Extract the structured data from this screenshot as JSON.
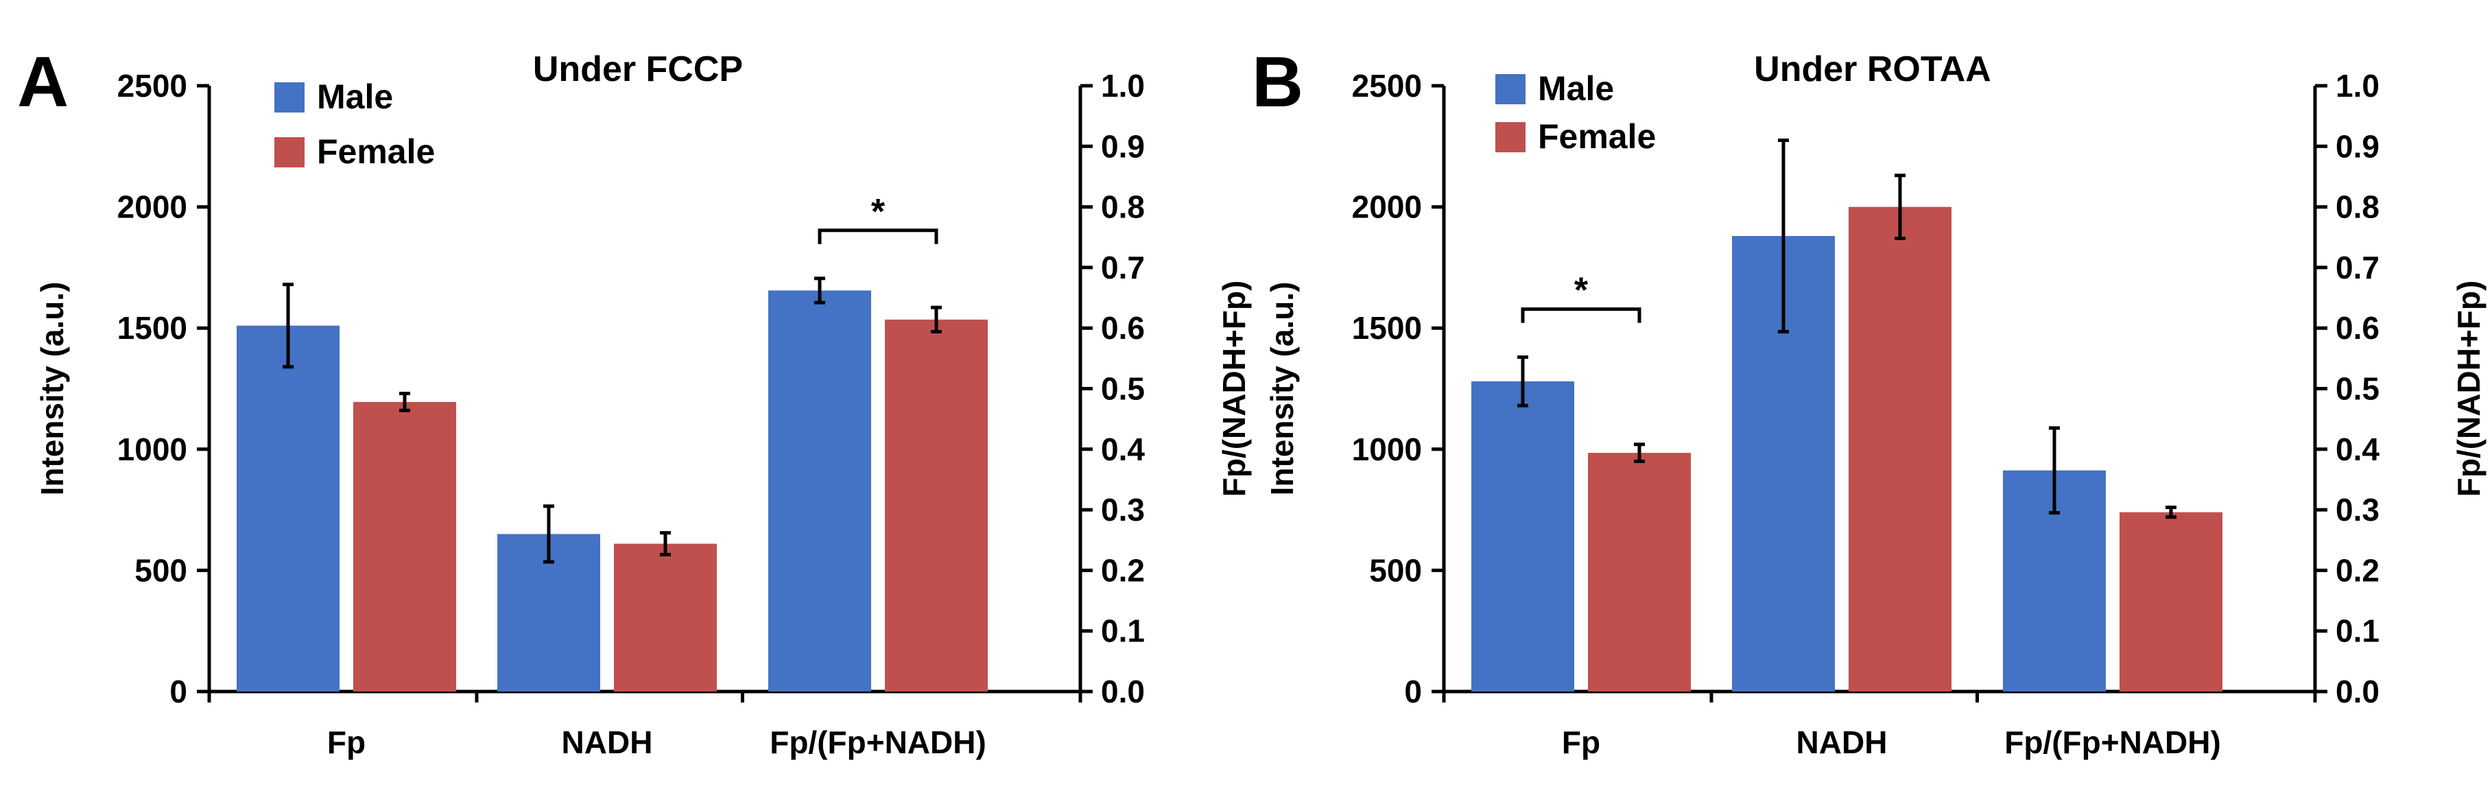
{
  "chart_data": [
    {
      "panel": "A",
      "type": "bar",
      "title": "Under FCCP",
      "categories": [
        "Fp",
        "NADH",
        "Fp/(Fp+NADH)"
      ],
      "ylabel": "Intensity (a.u.)",
      "y2label": "Fp/(NADH+Fp)",
      "ylim": [
        0,
        2500
      ],
      "y2lim": [
        0,
        1.0
      ],
      "yticks": [
        "0",
        "500",
        "1000",
        "1500",
        "2000",
        "2500"
      ],
      "y2ticks": [
        "0.0",
        "0.1",
        "0.2",
        "0.3",
        "0.4",
        "0.5",
        "0.6",
        "0.7",
        "0.8",
        "0.9",
        "1.0"
      ],
      "legend_position": "top-left",
      "series": [
        {
          "name": "Male",
          "color": "#4472c4",
          "values": [
            1510,
            650,
            0.662
          ],
          "errors": [
            170,
            115,
            0.02
          ]
        },
        {
          "name": "Female",
          "color": "#c0504d",
          "values": [
            1195,
            610,
            0.614
          ],
          "errors": [
            35,
            45,
            0.02
          ]
        }
      ],
      "secondary_axis_categories": [
        "Fp/(Fp+NADH)"
      ],
      "significance": [
        {
          "category": "Fp/(Fp+NADH)",
          "label": "*"
        }
      ]
    },
    {
      "panel": "B",
      "type": "bar",
      "title": "Under ROTAA",
      "categories": [
        "Fp",
        "NADH",
        "Fp/(Fp+NADH)"
      ],
      "ylabel": "Intensity (a.u.)",
      "y2label": "Fp/(NADH+Fp)",
      "ylim": [
        0,
        2500
      ],
      "y2lim": [
        0,
        1.0
      ],
      "yticks": [
        "0",
        "500",
        "1000",
        "1500",
        "2000",
        "2500"
      ],
      "y2ticks": [
        "0.0",
        "0.1",
        "0.2",
        "0.3",
        "0.4",
        "0.5",
        "0.6",
        "0.7",
        "0.8",
        "0.9",
        "1.0"
      ],
      "legend_position": "top-left",
      "series": [
        {
          "name": "Male",
          "color": "#4472c4",
          "values": [
            1280,
            1880,
            0.365
          ],
          "errors": [
            100,
            395,
            0.07
          ]
        },
        {
          "name": "Female",
          "color": "#c0504d",
          "values": [
            985,
            2000,
            0.296
          ],
          "errors": [
            35,
            130,
            0.008
          ]
        }
      ],
      "secondary_axis_categories": [
        "Fp/(Fp+NADH)"
      ],
      "significance": [
        {
          "category": "Fp",
          "label": "*"
        }
      ]
    }
  ]
}
